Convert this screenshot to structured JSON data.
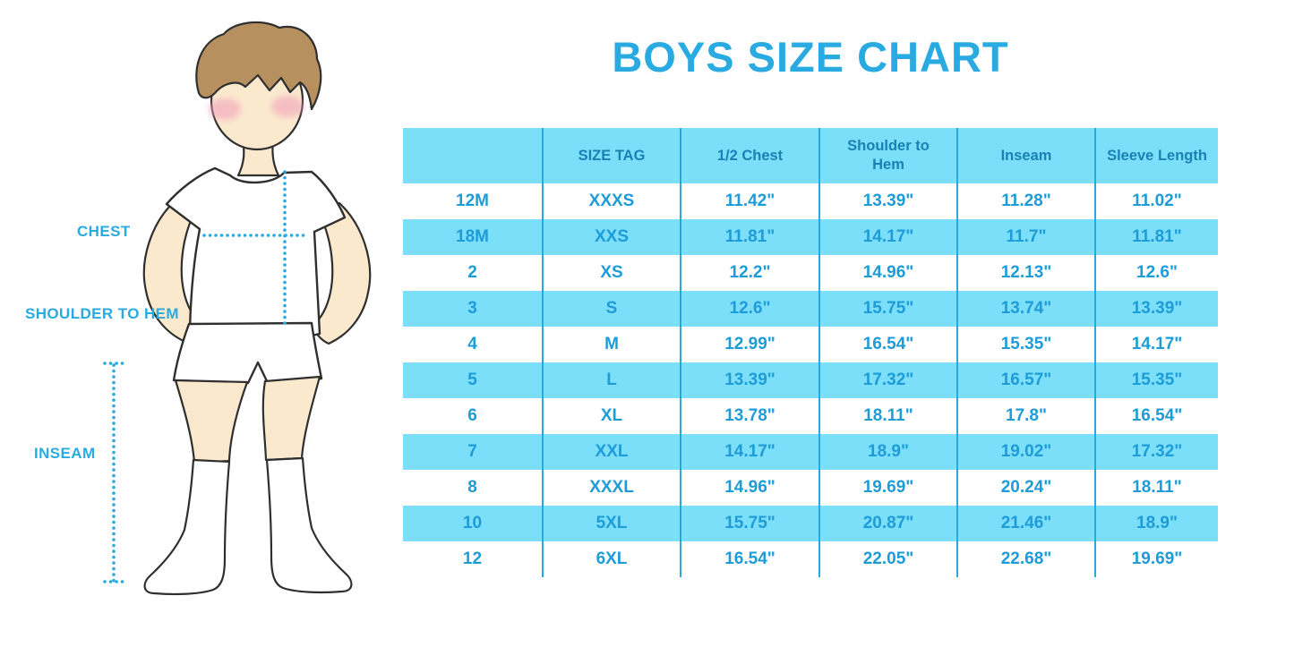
{
  "title": "BOYS SIZE CHART",
  "figure": {
    "labels": {
      "chest": "CHEST",
      "shoulder_to_hem": "SHOULDER TO HEM",
      "inseam": "INSEAM"
    }
  },
  "colors": {
    "accent_blue": "#29ABE2",
    "header_text_blue": "#1981B4",
    "value_text_blue": "#1E9CD8",
    "row_light_blue": "#7BDFFA",
    "table_line_blue": "#29A8E0",
    "skin": "#FBE9CE",
    "hair_brown": "#B7905F",
    "blush_pink": "#F2A3BC"
  },
  "chart_data": {
    "type": "table",
    "title": "BOYS SIZE CHART",
    "columns": [
      "",
      "SIZE TAG",
      "1/2 Chest",
      "Shoulder to\nHem",
      "Inseam",
      "Sleeve Length"
    ],
    "rows": [
      [
        "12M",
        "XXXS",
        "11.42\"",
        "13.39\"",
        "11.28\"",
        "11.02\""
      ],
      [
        "18M",
        "XXS",
        "11.81\"",
        "14.17\"",
        "11.7\"",
        "11.81\""
      ],
      [
        "2",
        "XS",
        "12.2\"",
        "14.96\"",
        "12.13\"",
        "12.6\""
      ],
      [
        "3",
        "S",
        "12.6\"",
        "15.75\"",
        "13.74\"",
        "13.39\""
      ],
      [
        "4",
        "M",
        "12.99\"",
        "16.54\"",
        "15.35\"",
        "14.17\""
      ],
      [
        "5",
        "L",
        "13.39\"",
        "17.32\"",
        "16.57\"",
        "15.35\""
      ],
      [
        "6",
        "XL",
        "13.78\"",
        "18.11\"",
        "17.8\"",
        "16.54\""
      ],
      [
        "7",
        "XXL",
        "14.17\"",
        "18.9\"",
        "19.02\"",
        "17.32\""
      ],
      [
        "8",
        "XXXL",
        "14.96\"",
        "19.69\"",
        "20.24\"",
        "18.11\""
      ],
      [
        "10",
        "5XL",
        "15.75\"",
        "20.87\"",
        "21.46\"",
        "18.9\""
      ],
      [
        "12",
        "6XL",
        "16.54\"",
        "22.05\"",
        "22.68\"",
        "19.69\""
      ]
    ],
    "row_striping": "header and alternating rows light blue #7BDFFA, others white",
    "units": "inches"
  }
}
